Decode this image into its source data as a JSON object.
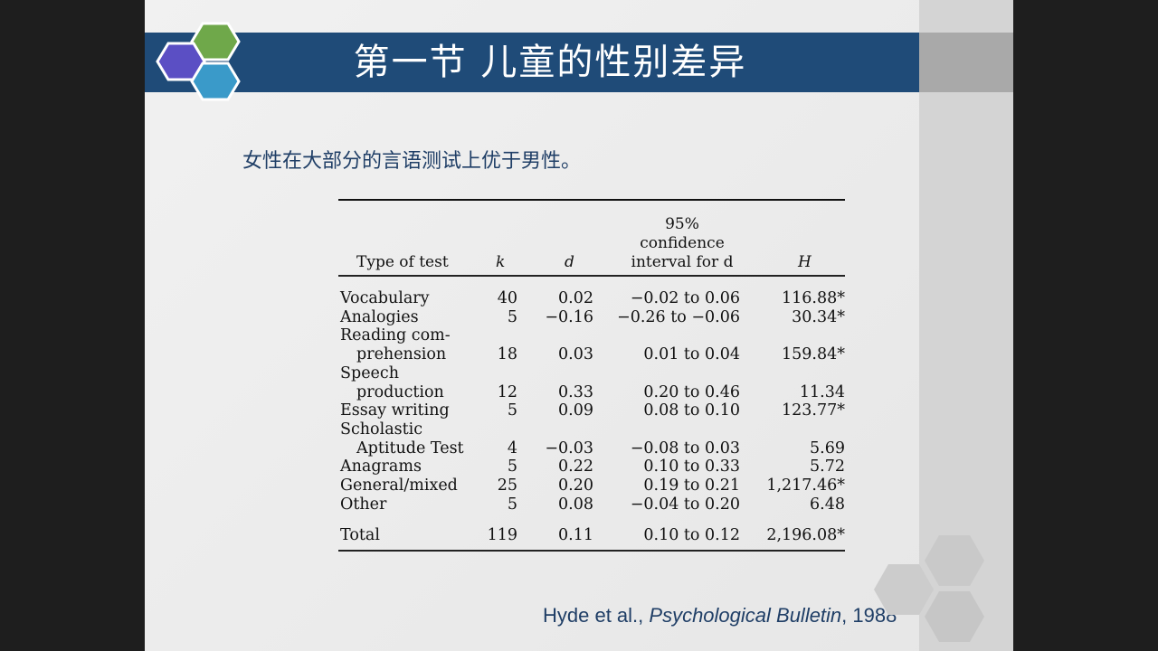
{
  "slide": {
    "title": "第一节  儿童的性别差异",
    "subtitle": "女性在大部分的言语测试上优于男性。",
    "citation": {
      "authors": "Hyde et al., ",
      "journal": "Psychological Bulletin",
      "year": ", 1988"
    }
  },
  "table": {
    "headers": {
      "type": "Type of test",
      "k": "k",
      "d": "d",
      "ci_line1": "95%",
      "ci_line2": "confidence",
      "ci_line3": "interval for d",
      "h": "H"
    },
    "rows": [
      {
        "type": "Vocabulary",
        "k": "40",
        "d": "0.02",
        "ci": "−0.02 to 0.06",
        "h": "116.88*"
      },
      {
        "type": "Analogies",
        "k": "5",
        "d": "−0.16",
        "ci": "−0.26 to −0.06",
        "h": "30.34*"
      },
      {
        "type": "Reading com-",
        "type2": "prehension",
        "k": "18",
        "d": "0.03",
        "ci": "0.01 to 0.04",
        "h": "159.84*"
      },
      {
        "type": "Speech",
        "type2": "production",
        "k": "12",
        "d": "0.33",
        "ci": "0.20 to 0.46",
        "h": "11.34"
      },
      {
        "type": "Essay writing",
        "k": "5",
        "d": "0.09",
        "ci": "0.08 to 0.10",
        "h": "123.77*"
      },
      {
        "type": "Scholastic",
        "type2": "Aptitude Test",
        "k": "4",
        "d": "−0.03",
        "ci": "−0.08 to 0.03",
        "h": "5.69"
      },
      {
        "type": "Anagrams",
        "k": "5",
        "d": "0.22",
        "ci": "0.10 to 0.33",
        "h": "5.72"
      },
      {
        "type": "General/mixed",
        "k": "25",
        "d": "0.20",
        "ci": "0.19 to 0.21",
        "h": "1,217.46*"
      },
      {
        "type": "Other",
        "k": "5",
        "d": "0.08",
        "ci": "−0.04 to 0.20",
        "h": "6.48"
      },
      {
        "type": "Total",
        "k": "119",
        "d": "0.11",
        "ci": "0.10 to 0.12",
        "h": "2,196.08*"
      }
    ]
  },
  "colors": {
    "title_bar": "#1f4b78",
    "text_blue": "#1f3e66",
    "hex_purple": "#5b4fc4",
    "hex_green": "#6fa84a",
    "hex_blue": "#3a9ac9"
  }
}
